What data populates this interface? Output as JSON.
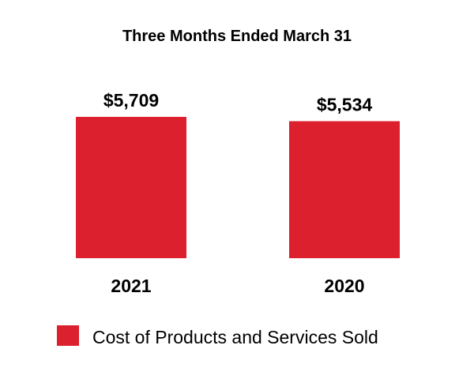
{
  "chart_data": {
    "type": "bar",
    "title": "Three Months Ended March 31",
    "categories": [
      "2021",
      "2020"
    ],
    "series": [
      {
        "name": "Cost of Products and Services Sold",
        "values": [
          5709,
          5534
        ],
        "labels": [
          "$5,709",
          "$5,534"
        ],
        "color": "#DC202E"
      }
    ],
    "xlabel": "",
    "ylabel": "",
    "ylim": [
      0,
      5709
    ],
    "grid": false,
    "legend_position": "bottom"
  }
}
